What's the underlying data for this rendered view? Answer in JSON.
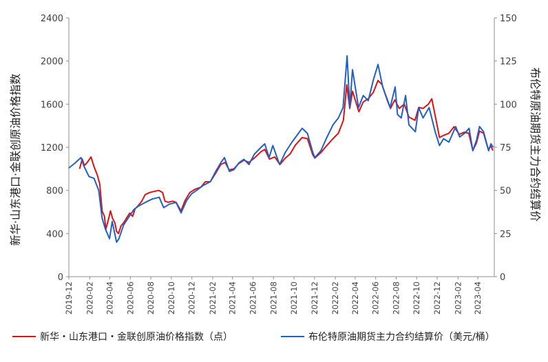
{
  "chart_data": {
    "type": "line",
    "y_left": {
      "label": "新华·山东港口·金联创原油价格指数",
      "range": [
        0,
        2400
      ],
      "ticks": [
        "0",
        "400",
        "800",
        "1200",
        "1600",
        "2000",
        "2400"
      ]
    },
    "y_right": {
      "label": "布伦特原油期货主力合约结算价",
      "range": [
        0,
        150
      ],
      "ticks": [
        "0",
        "25",
        "50",
        "75",
        "100",
        "125",
        "150"
      ]
    },
    "x_axis": {
      "range": [
        "2019-12-01",
        "2023-05-20"
      ],
      "ticks": [
        "2019-12",
        "2020-02",
        "2020-04",
        "2020-06",
        "2020-08",
        "2020-10",
        "2020-12",
        "2021-02",
        "2021-04",
        "2021-06",
        "2021-08",
        "2021-10",
        "2021-12",
        "2022-02",
        "2022-04",
        "2022-06",
        "2022-08",
        "2022-10",
        "2022-12",
        "2023-02",
        "2023-04"
      ]
    },
    "grid": false,
    "legend_placement": "bottom",
    "series": [
      {
        "name": "新华・山东港口・金联创原油价格指数（点）",
        "axis": "left",
        "color": "#e01010",
        "points": [
          [
            "2020-01-02",
            1000
          ],
          [
            "2020-01-10",
            1090
          ],
          [
            "2020-01-16",
            1030
          ],
          [
            "2020-01-25",
            1060
          ],
          [
            "2020-02-05",
            1110
          ],
          [
            "2020-02-14",
            1020
          ],
          [
            "2020-02-24",
            940
          ],
          [
            "2020-03-02",
            860
          ],
          [
            "2020-03-09",
            610
          ],
          [
            "2020-03-16",
            560
          ],
          [
            "2020-03-20",
            440
          ],
          [
            "2020-03-27",
            520
          ],
          [
            "2020-04-03",
            610
          ],
          [
            "2020-04-09",
            540
          ],
          [
            "2020-04-16",
            500
          ],
          [
            "2020-04-21",
            420
          ],
          [
            "2020-04-27",
            400
          ],
          [
            "2020-05-04",
            470
          ],
          [
            "2020-05-12",
            500
          ],
          [
            "2020-05-20",
            540
          ],
          [
            "2020-05-30",
            590
          ],
          [
            "2020-06-08",
            560
          ],
          [
            "2020-06-15",
            630
          ],
          [
            "2020-06-25",
            660
          ],
          [
            "2020-07-05",
            700
          ],
          [
            "2020-07-15",
            760
          ],
          [
            "2020-07-28",
            780
          ],
          [
            "2020-08-10",
            790
          ],
          [
            "2020-08-25",
            800
          ],
          [
            "2020-09-05",
            780
          ],
          [
            "2020-09-12",
            700
          ],
          [
            "2020-09-22",
            690
          ],
          [
            "2020-10-05",
            700
          ],
          [
            "2020-10-15",
            690
          ],
          [
            "2020-10-30",
            610
          ],
          [
            "2020-11-10",
            700
          ],
          [
            "2020-11-25",
            780
          ],
          [
            "2020-12-10",
            810
          ],
          [
            "2020-12-28",
            830
          ],
          [
            "2021-01-10",
            880
          ],
          [
            "2021-01-25",
            880
          ],
          [
            "2021-02-10",
            960
          ],
          [
            "2021-02-25",
            1040
          ],
          [
            "2021-03-10",
            1060
          ],
          [
            "2021-03-22",
            990
          ],
          [
            "2021-04-05",
            1000
          ],
          [
            "2021-04-20",
            1050
          ],
          [
            "2021-05-05",
            1080
          ],
          [
            "2021-05-20",
            1060
          ],
          [
            "2021-06-05",
            1100
          ],
          [
            "2021-06-25",
            1160
          ],
          [
            "2021-07-06",
            1180
          ],
          [
            "2021-07-20",
            1090
          ],
          [
            "2021-08-05",
            1110
          ],
          [
            "2021-08-20",
            1040
          ],
          [
            "2021-09-05",
            1100
          ],
          [
            "2021-09-20",
            1140
          ],
          [
            "2021-10-05",
            1220
          ],
          [
            "2021-10-25",
            1290
          ],
          [
            "2021-11-10",
            1280
          ],
          [
            "2021-11-26",
            1130
          ],
          [
            "2021-12-02",
            1100
          ],
          [
            "2021-12-20",
            1150
          ],
          [
            "2022-01-05",
            1210
          ],
          [
            "2022-01-25",
            1280
          ],
          [
            "2022-02-10",
            1330
          ],
          [
            "2022-02-25",
            1450
          ],
          [
            "2022-03-07",
            1780
          ],
          [
            "2022-03-16",
            1560
          ],
          [
            "2022-03-24",
            1720
          ],
          [
            "2022-04-05",
            1600
          ],
          [
            "2022-04-12",
            1530
          ],
          [
            "2022-04-25",
            1620
          ],
          [
            "2022-05-10",
            1650
          ],
          [
            "2022-05-25",
            1710
          ],
          [
            "2022-06-08",
            1820
          ],
          [
            "2022-06-20",
            1780
          ],
          [
            "2022-07-05",
            1640
          ],
          [
            "2022-07-15",
            1560
          ],
          [
            "2022-07-28",
            1640
          ],
          [
            "2022-08-10",
            1560
          ],
          [
            "2022-08-25",
            1600
          ],
          [
            "2022-09-08",
            1480
          ],
          [
            "2022-09-26",
            1450
          ],
          [
            "2022-10-07",
            1570
          ],
          [
            "2022-10-20",
            1560
          ],
          [
            "2022-11-05",
            1600
          ],
          [
            "2022-11-15",
            1650
          ],
          [
            "2022-11-28",
            1450
          ],
          [
            "2022-12-08",
            1290
          ],
          [
            "2022-12-20",
            1310
          ],
          [
            "2023-01-05",
            1330
          ],
          [
            "2023-01-20",
            1390
          ],
          [
            "2023-02-05",
            1320
          ],
          [
            "2023-02-20",
            1340
          ],
          [
            "2023-03-05",
            1330
          ],
          [
            "2023-03-17",
            1170
          ],
          [
            "2023-03-28",
            1240
          ],
          [
            "2023-04-06",
            1350
          ],
          [
            "2023-04-18",
            1330
          ],
          [
            "2023-05-02",
            1180
          ],
          [
            "2023-05-10",
            1210
          ],
          [
            "2023-05-16",
            1170
          ]
        ]
      },
      {
        "name": "布伦特原油期货主力合约结算价（美元/桶）",
        "axis": "right",
        "color": "#1f5fc8",
        "points": [
          [
            "2019-12-01",
            63
          ],
          [
            "2019-12-20",
            66
          ],
          [
            "2020-01-06",
            69
          ],
          [
            "2020-01-15",
            64
          ],
          [
            "2020-01-30",
            58
          ],
          [
            "2020-02-14",
            57
          ],
          [
            "2020-02-28",
            50
          ],
          [
            "2020-03-09",
            34
          ],
          [
            "2020-03-18",
            28
          ],
          [
            "2020-03-31",
            22
          ],
          [
            "2020-04-08",
            32
          ],
          [
            "2020-04-21",
            20
          ],
          [
            "2020-04-28",
            22
          ],
          [
            "2020-05-12",
            30
          ],
          [
            "2020-05-29",
            35
          ],
          [
            "2020-06-12",
            39
          ],
          [
            "2020-06-26",
            41
          ],
          [
            "2020-07-15",
            43
          ],
          [
            "2020-08-05",
            45
          ],
          [
            "2020-08-26",
            46
          ],
          [
            "2020-09-08",
            40
          ],
          [
            "2020-09-25",
            42
          ],
          [
            "2020-10-15",
            43
          ],
          [
            "2020-10-30",
            37
          ],
          [
            "2020-11-15",
            44
          ],
          [
            "2020-11-30",
            48
          ],
          [
            "2020-12-15",
            50
          ],
          [
            "2021-01-05",
            53
          ],
          [
            "2021-01-25",
            55
          ],
          [
            "2021-02-10",
            61
          ],
          [
            "2021-02-25",
            66
          ],
          [
            "2021-03-08",
            69
          ],
          [
            "2021-03-23",
            61
          ],
          [
            "2021-04-05",
            62
          ],
          [
            "2021-04-20",
            66
          ],
          [
            "2021-05-05",
            68
          ],
          [
            "2021-05-20",
            65
          ],
          [
            "2021-06-05",
            71
          ],
          [
            "2021-06-25",
            75
          ],
          [
            "2021-07-06",
            77
          ],
          [
            "2021-07-19",
            69
          ],
          [
            "2021-07-30",
            76
          ],
          [
            "2021-08-19",
            65
          ],
          [
            "2021-09-05",
            72
          ],
          [
            "2021-09-25",
            78
          ],
          [
            "2021-10-10",
            82
          ],
          [
            "2021-10-25",
            86
          ],
          [
            "2021-11-10",
            83
          ],
          [
            "2021-11-26",
            72
          ],
          [
            "2021-12-02",
            69
          ],
          [
            "2021-12-20",
            73
          ],
          [
            "2022-01-05",
            80
          ],
          [
            "2022-01-25",
            88
          ],
          [
            "2022-02-10",
            92
          ],
          [
            "2022-02-24",
            98
          ],
          [
            "2022-03-08",
            128
          ],
          [
            "2022-03-16",
            98
          ],
          [
            "2022-03-24",
            120
          ],
          [
            "2022-04-11",
            98
          ],
          [
            "2022-04-25",
            105
          ],
          [
            "2022-05-10",
            102
          ],
          [
            "2022-05-25",
            114
          ],
          [
            "2022-06-08",
            123
          ],
          [
            "2022-06-22",
            110
          ],
          [
            "2022-07-05",
            103
          ],
          [
            "2022-07-14",
            98
          ],
          [
            "2022-07-29",
            110
          ],
          [
            "2022-08-05",
            94
          ],
          [
            "2022-08-16",
            92
          ],
          [
            "2022-08-29",
            105
          ],
          [
            "2022-09-08",
            88
          ],
          [
            "2022-09-27",
            84
          ],
          [
            "2022-10-07",
            98
          ],
          [
            "2022-10-20",
            92
          ],
          [
            "2022-11-07",
            98
          ],
          [
            "2022-11-25",
            84
          ],
          [
            "2022-12-08",
            76
          ],
          [
            "2022-12-20",
            80
          ],
          [
            "2023-01-05",
            78
          ],
          [
            "2023-01-25",
            87
          ],
          [
            "2023-02-06",
            81
          ],
          [
            "2023-02-20",
            83
          ],
          [
            "2023-03-06",
            86
          ],
          [
            "2023-03-17",
            73
          ],
          [
            "2023-03-28",
            79
          ],
          [
            "2023-04-06",
            87
          ],
          [
            "2023-04-18",
            84
          ],
          [
            "2023-05-03",
            73
          ],
          [
            "2023-05-10",
            77
          ],
          [
            "2023-05-17",
            75
          ]
        ]
      }
    ]
  }
}
